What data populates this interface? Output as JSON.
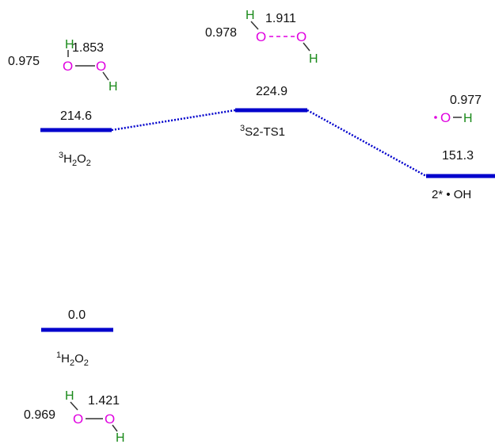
{
  "colors": {
    "level": "#0000cc",
    "connector": "#0000cc",
    "oxygen": "#e000e0",
    "hydrogen": "#1a8a1a",
    "bond": "#333333",
    "text": "#111111"
  },
  "levels": [
    {
      "id": "3h2o2",
      "energy": "214.6",
      "label": {
        "sup": "3",
        "parts": [
          "H",
          "2",
          "O",
          "2"
        ]
      }
    },
    {
      "id": "3s2ts1",
      "energy": "224.9",
      "label": {
        "sup": "3",
        "text": "S2-TS1"
      }
    },
    {
      "id": "2oh",
      "energy": "151.3",
      "label": {
        "text": "2* • OH"
      }
    },
    {
      "id": "1h2o2",
      "energy": "0.0",
      "label": {
        "sup": "1",
        "parts": [
          "H",
          "2",
          "O",
          "2"
        ]
      }
    }
  ],
  "structures": {
    "triplet_h2o2": {
      "oh_bond": "0.975",
      "oo_bond": "1.853",
      "atoms": [
        "H",
        "O",
        "O",
        "H"
      ]
    },
    "ts1": {
      "oh_bond": "0.978",
      "oo_bond": "1.911",
      "atoms": [
        "H",
        "O",
        "O",
        "H"
      ]
    },
    "oh_radical": {
      "oh_bond": "0.977",
      "atoms": [
        "O",
        "H"
      ]
    },
    "singlet_h2o2": {
      "oh_bond": "0.969",
      "oo_bond": "1.421",
      "atoms": [
        "H",
        "O",
        "O",
        "H"
      ]
    }
  }
}
